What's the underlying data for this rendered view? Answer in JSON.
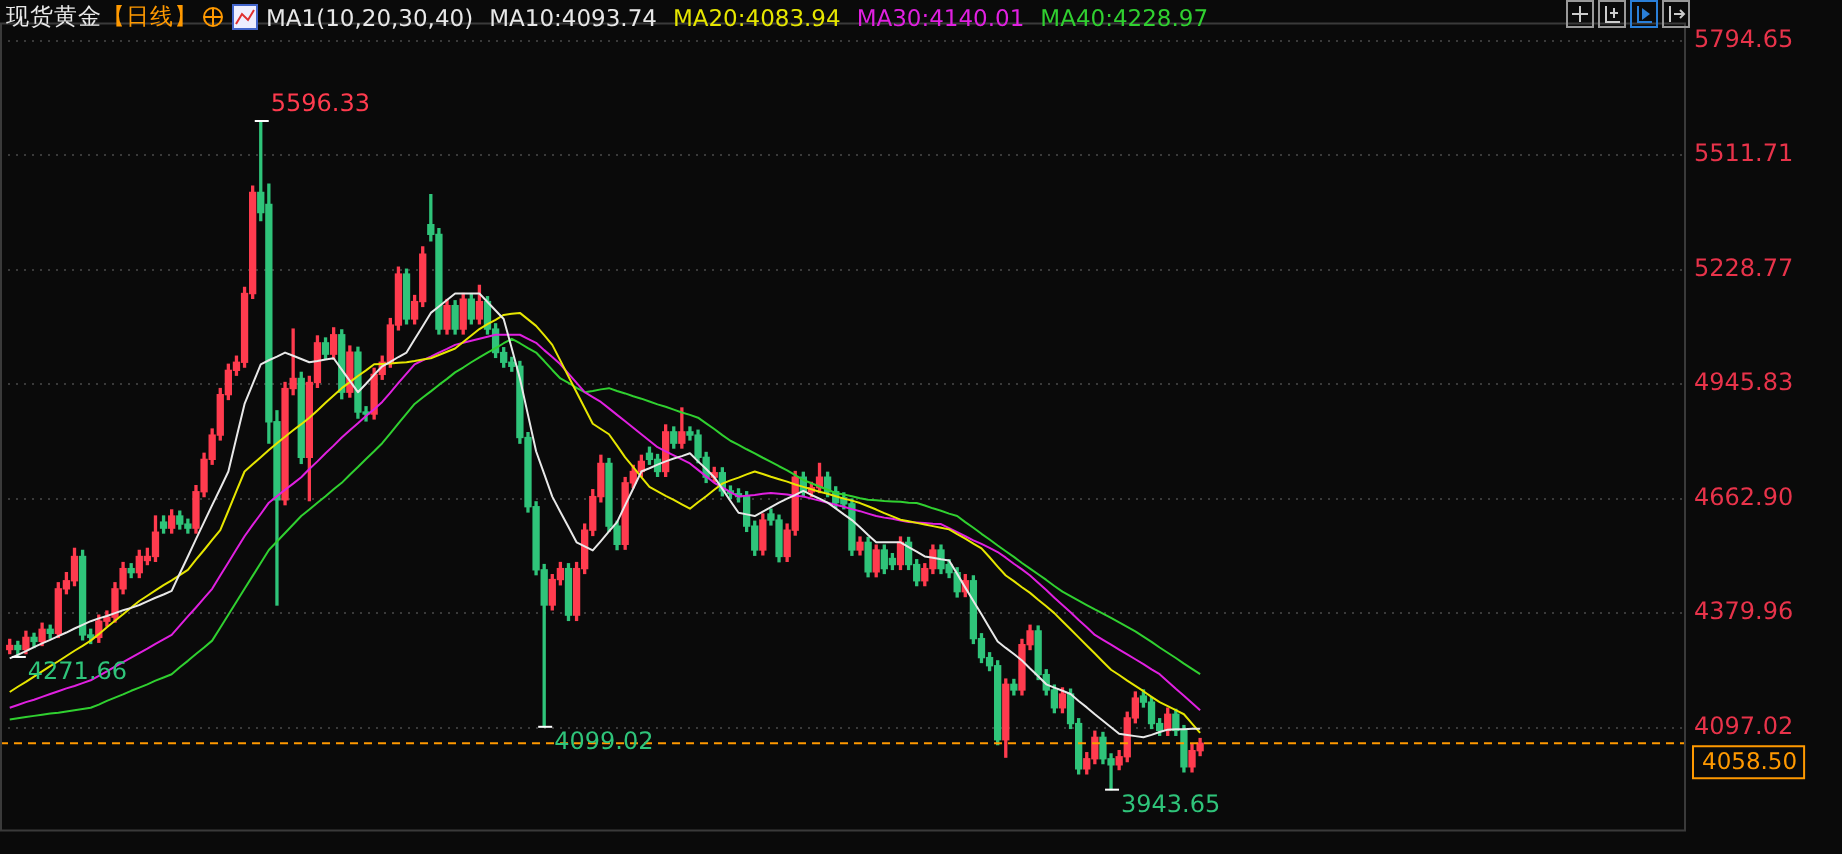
{
  "chart_data": {
    "type": "candlestick",
    "title": "现货黄金",
    "subtitle": "【日线】",
    "annotations": [
      "MA1(10,20,30,40)",
      "5596.33",
      "4271.66",
      "4099.02",
      "3943.65"
    ],
    "colors": [
      "#ff3b4e",
      "#2fc47a",
      "#ff3b4e",
      "#2fc47a",
      "#ff3b4e",
      "#2fc47a",
      "#ff3b4e",
      "#ff3b4e",
      "#ff3b4e",
      "#2fc47a",
      "#2fc47a",
      "#ff3b4e",
      "#ff3b4e",
      "#ff3b4e",
      "#ff3b4e",
      "#2fc47a",
      "#ff3b4e",
      "#ff3b4e",
      "#ff3b4e",
      "#2fc47a",
      "#ff3b4e",
      "#2fc47a",
      "#2fc47a",
      "#ff3b4e",
      "#ff3b4e",
      "#ff3b4e",
      "#ff3b4e",
      "#ff3b4e",
      "#ff3b4e",
      "#ff3b4e",
      "#ff3b4e",
      "#2fc47a",
      "#2fc47a",
      "#2fc47a",
      "#ff3b4e",
      "#ff3b4e",
      "#2fc47a",
      "#ff3b4e",
      "#ff3b4e",
      "#2fc47a",
      "#ff3b4e",
      "#2fc47a",
      "#ff3b4e",
      "#2fc47a",
      "#2fc47a",
      "#ff3b4e",
      "#ff3b4e",
      "#ff3b4e",
      "#ff3b4e",
      "#2fc47a",
      "#ff3b4e",
      "#ff3b4e",
      "#2fc47a",
      "#2fc47a",
      "#ff3b4e",
      "#2fc47a",
      "#ff3b4e",
      "#2fc47a",
      "#ff3b4e",
      "#2fc47a",
      "#2fc47a",
      "#2fc47a",
      "#2fc47a",
      "#2fc47a",
      "#2fc47a",
      "#2fc47a",
      "#2fc47a",
      "#ff3b4e",
      "#ff3b4e",
      "#2fc47a",
      "#ff3b4e",
      "#ff3b4e",
      "#ff3b4e",
      "#ff3b4e",
      "#2fc47a",
      "#2fc47a",
      "#ff3b4e",
      "#ff3b4e",
      "#ff3b4e",
      "#2fc47a",
      "#2fc47a",
      "#ff3b4e",
      "#2fc47a",
      "#ff3b4e",
      "#2fc47a",
      "#2fc47a",
      "#2fc47a",
      "#ff3b4e",
      "#2fc47a",
      "#2fc47a",
      "#2fc47a",
      "#2fc47a",
      "#2fc47a",
      "#ff3b4e",
      "#2fc47a",
      "#2fc47a",
      "#ff3b4e",
      "#ff3b4e",
      "#2fc47a",
      "#ff3b4e",
      "#ff3b4e",
      "#2fc47a",
      "#2fc47a",
      "#2fc47a",
      "#2fc47a",
      "#ff3b4e",
      "#2fc47a",
      "#ff3b4e",
      "#2fc47a",
      "#2fc47a",
      "#ff3b4e",
      "#2fc47a",
      "#2fc47a",
      "#ff3b4e",
      "#ff3b4e",
      "#2fc47a",
      "#2fc47a",
      "#2fc47a",
      "#ff3b4e",
      "#2fc47a",
      "#2fc47a",
      "#2fc47a",
      "#2fc47a",
      "#ff3b4e",
      "#2fc47a",
      "#ff3b4e",
      "#ff3b4e",
      "#2fc47a",
      "#2fc47a",
      "#2fc47a",
      "#ff3b4e",
      "#2fc47a",
      "#2fc47a",
      "#ff3b4e",
      "#ff3b4e",
      "#2fc47a",
      "#2fc47a",
      "#ff3b4e",
      "#ff3b4e",
      "#ff3b4e",
      "#2fc47a",
      "#2fc47a",
      "#2fc47a",
      "#ff3b4e",
      "#2fc47a",
      "#2fc47a",
      "#ff3b4e",
      "#ff3b4e"
    ],
    "categories": [
      null,
      null,
      null,
      null,
      null,
      null,
      null,
      null,
      null,
      null,
      null,
      null,
      null,
      null,
      null,
      null,
      null,
      null,
      null,
      null,
      null,
      null,
      null,
      null,
      null,
      null,
      null,
      null,
      null,
      null,
      null,
      null,
      null,
      null,
      null,
      null,
      null,
      null,
      null,
      null,
      null,
      null,
      null,
      null,
      null,
      null,
      null,
      null,
      null,
      null,
      null,
      null,
      null,
      null,
      null,
      null,
      null,
      null,
      null,
      null,
      null,
      null,
      null,
      null,
      null,
      null,
      null,
      null,
      null,
      null,
      null,
      null,
      null,
      null,
      null,
      null,
      null,
      null,
      null,
      null,
      null,
      null,
      null,
      null,
      null,
      null,
      null,
      null,
      null,
      null,
      null,
      null,
      null,
      null,
      null,
      null,
      null,
      null,
      null,
      null,
      null,
      null,
      null,
      null,
      null,
      null,
      null,
      null,
      null,
      null,
      null,
      null,
      null,
      null,
      null,
      null,
      null,
      null,
      null,
      null,
      null,
      null,
      null,
      null,
      null,
      null,
      null,
      null,
      null,
      null,
      null,
      null,
      null,
      null,
      null,
      null,
      null,
      null,
      null,
      null,
      null,
      null,
      null,
      null,
      null,
      null,
      null,
      null
    ],
    "ohlc": [
      [
        4290,
        4315,
        4280,
        4300
      ],
      [
        4300,
        4310,
        4271.66,
        4290
      ],
      [
        4290,
        4335,
        4280,
        4320
      ],
      [
        4320,
        4330,
        4295,
        4310
      ],
      [
        4310,
        4355,
        4300,
        4340
      ],
      [
        4340,
        4350,
        4318,
        4330
      ],
      [
        4330,
        4455,
        4320,
        4440
      ],
      [
        4440,
        4480,
        4428,
        4460
      ],
      [
        4460,
        4540,
        4448,
        4520
      ],
      [
        4520,
        4535,
        4314,
        4326
      ],
      [
        4326,
        4340,
        4305,
        4320
      ],
      [
        4320,
        4375,
        4308,
        4360
      ],
      [
        4360,
        4385,
        4348,
        4370
      ],
      [
        4370,
        4455,
        4358,
        4440
      ],
      [
        4440,
        4505,
        4428,
        4490
      ],
      [
        4490,
        4502,
        4468,
        4480
      ],
      [
        4480,
        4535,
        4468,
        4520
      ],
      [
        4510,
        4540,
        4500,
        4520
      ],
      [
        4520,
        4620,
        4508,
        4580
      ],
      [
        4605,
        4620,
        4578,
        4590
      ],
      [
        4590,
        4635,
        4578,
        4620
      ],
      [
        4620,
        4632,
        4588,
        4600
      ],
      [
        4600,
        4612,
        4578,
        4590
      ],
      [
        4590,
        4695,
        4578,
        4680
      ],
      [
        4680,
        4775,
        4668,
        4760
      ],
      [
        4760,
        4835,
        4748,
        4820
      ],
      [
        4820,
        4935,
        4808,
        4920
      ],
      [
        4920,
        4995,
        4908,
        4980
      ],
      [
        4980,
        5015,
        4968,
        5000
      ],
      [
        5000,
        5185,
        4988,
        5170
      ],
      [
        5170,
        5435,
        5158,
        5420
      ],
      [
        5420,
        5596.33,
        5350,
        5370
      ],
      [
        5390,
        5440,
        4800,
        4853
      ],
      [
        4853,
        4880,
        4400,
        4660
      ],
      [
        4660,
        4950,
        4648,
        4935
      ],
      [
        4935,
        5082,
        4920,
        4960
      ],
      [
        4960,
        4975,
        4750,
        4765
      ],
      [
        4765,
        4965,
        4658,
        4950
      ],
      [
        4950,
        5065,
        4938,
        5048
      ],
      [
        5048,
        5060,
        5008,
        5020
      ],
      [
        5020,
        5085,
        5008,
        5068
      ],
      [
        5068,
        5080,
        4910,
        4926
      ],
      [
        4926,
        5040,
        4914,
        5025
      ],
      [
        5025,
        5037,
        4862,
        4877
      ],
      [
        4877,
        4890,
        4855,
        4872
      ],
      [
        4872,
        4985,
        4860,
        4970
      ],
      [
        4970,
        5015,
        4958,
        5000
      ],
      [
        5000,
        5108,
        4988,
        5092
      ],
      [
        5092,
        5235,
        5080,
        5218
      ],
      [
        5218,
        5230,
        5095,
        5107
      ],
      [
        5107,
        5165,
        5095,
        5150
      ],
      [
        5150,
        5285,
        5138,
        5267
      ],
      [
        5340,
        5414,
        5300,
        5316
      ],
      [
        5316,
        5330,
        5070,
        5082
      ],
      [
        5082,
        5155,
        5070,
        5140
      ],
      [
        5140,
        5152,
        5070,
        5082
      ],
      [
        5082,
        5170,
        5070,
        5156
      ],
      [
        5156,
        5168,
        5095,
        5107
      ],
      [
        5107,
        5190,
        5095,
        5150
      ],
      [
        5150,
        5162,
        5070,
        5082
      ],
      [
        5082,
        5095,
        5012,
        5024
      ],
      [
        5024,
        5036,
        4988,
        5000
      ],
      [
        5000,
        5012,
        4978,
        4990
      ],
      [
        4990,
        5002,
        4800,
        4814
      ],
      [
        4814,
        4826,
        4630,
        4643
      ],
      [
        4643,
        4655,
        4475,
        4487
      ],
      [
        4487,
        4500,
        4099.02,
        4400
      ],
      [
        4400,
        4475,
        4388,
        4463
      ],
      [
        4463,
        4505,
        4450,
        4490
      ],
      [
        4490,
        4502,
        4362,
        4375
      ],
      [
        4375,
        4505,
        4362,
        4490
      ],
      [
        4490,
        4600,
        4478,
        4585
      ],
      [
        4585,
        4685,
        4572,
        4668
      ],
      [
        4668,
        4770,
        4655,
        4750
      ],
      [
        4750,
        4762,
        4582,
        4595
      ],
      [
        4595,
        4607,
        4537,
        4550
      ],
      [
        4550,
        4715,
        4538,
        4702
      ],
      [
        4702,
        4745,
        4690,
        4730
      ],
      [
        4730,
        4770,
        4718,
        4755
      ],
      [
        4775,
        4790,
        4748,
        4760
      ],
      [
        4760,
        4772,
        4718,
        4730
      ],
      [
        4730,
        4845,
        4718,
        4828
      ],
      [
        4828,
        4840,
        4788,
        4800
      ],
      [
        4800,
        4887,
        4788,
        4828
      ],
      [
        4828,
        4840,
        4808,
        4820
      ],
      [
        4820,
        4832,
        4752,
        4765
      ],
      [
        4765,
        4777,
        4703,
        4716
      ],
      [
        4716,
        4740,
        4704,
        4727
      ],
      [
        4727,
        4739,
        4670,
        4682
      ],
      [
        4682,
        4694,
        4663,
        4675
      ],
      [
        4675,
        4687,
        4655,
        4668
      ],
      [
        4668,
        4680,
        4582,
        4595
      ],
      [
        4595,
        4607,
        4523,
        4536
      ],
      [
        4536,
        4625,
        4524,
        4610
      ],
      [
        4625,
        4637,
        4598,
        4610
      ],
      [
        4610,
        4622,
        4507,
        4520
      ],
      [
        4520,
        4600,
        4508,
        4585
      ],
      [
        4585,
        4730,
        4573,
        4716
      ],
      [
        4716,
        4728,
        4668,
        4680
      ],
      [
        4680,
        4703,
        4668,
        4690
      ],
      [
        4690,
        4750,
        4678,
        4716
      ],
      [
        4716,
        4728,
        4668,
        4680
      ],
      [
        4680,
        4692,
        4640,
        4653
      ],
      [
        4665,
        4677,
        4638,
        4650
      ],
      [
        4650,
        4662,
        4523,
        4536
      ],
      [
        4536,
        4568,
        4524,
        4555
      ],
      [
        4555,
        4567,
        4470,
        4482
      ],
      [
        4482,
        4548,
        4470,
        4536
      ],
      [
        4536,
        4548,
        4478,
        4490
      ],
      [
        4515,
        4527,
        4488,
        4500
      ],
      [
        4500,
        4568,
        4488,
        4555
      ],
      [
        4555,
        4567,
        4488,
        4500
      ],
      [
        4500,
        4512,
        4448,
        4460
      ],
      [
        4460,
        4502,
        4448,
        4490
      ],
      [
        4490,
        4548,
        4478,
        4536
      ],
      [
        4536,
        4548,
        4478,
        4490
      ],
      [
        4500,
        4512,
        4468,
        4480
      ],
      [
        4480,
        4492,
        4420,
        4433
      ],
      [
        4433,
        4475,
        4421,
        4460
      ],
      [
        4460,
        4472,
        4305,
        4317
      ],
      [
        4317,
        4329,
        4258,
        4270
      ],
      [
        4270,
        4282,
        4238,
        4250
      ],
      [
        4250,
        4262,
        4055,
        4067
      ],
      [
        4067,
        4217,
        4024,
        4204
      ],
      [
        4204,
        4216,
        4178,
        4190
      ],
      [
        4190,
        4315,
        4178,
        4302
      ],
      [
        4302,
        4350,
        4290,
        4336
      ],
      [
        4336,
        4348,
        4216,
        4228
      ],
      [
        4228,
        4240,
        4178,
        4190
      ],
      [
        4190,
        4202,
        4134,
        4146
      ],
      [
        4146,
        4195,
        4134,
        4180
      ],
      [
        4180,
        4192,
        4095,
        4107
      ],
      [
        4107,
        4119,
        3983,
        3995
      ],
      [
        3995,
        4035,
        3983,
        4020
      ],
      [
        4020,
        4088,
        4008,
        4073
      ],
      [
        4073,
        4085,
        4008,
        4020
      ],
      [
        4020,
        4032,
        3943.65,
        4005
      ],
      [
        4005,
        4040,
        3993,
        4025
      ],
      [
        4025,
        4135,
        4013,
        4121
      ],
      [
        4121,
        4185,
        4109,
        4170
      ],
      [
        4175,
        4190,
        4148,
        4160
      ],
      [
        4160,
        4172,
        4095,
        4107
      ],
      [
        4107,
        4119,
        4078,
        4090
      ],
      [
        4090,
        4145,
        4078,
        4130
      ],
      [
        4130,
        4142,
        4078,
        4090
      ],
      [
        4090,
        4102,
        3988,
        4000
      ],
      [
        4000,
        4055,
        3988,
        4040
      ],
      [
        4040,
        4070,
        4028,
        4058.5
      ]
    ],
    "series": [
      {
        "type": "line",
        "name": "MA10:4093.74",
        "color": "#e8e8e8",
        "values": [
          4268,
          4277,
          4286,
          4296,
          4305,
          4314,
          4323,
          4332,
          4342,
          4351,
          4360,
          4367,
          4373,
          4380,
          4387,
          4393,
          4400,
          4409,
          4418,
          4426,
          4435,
          4478,
          4520,
          4563,
          4605,
          4647,
          4688,
          4730,
          4814,
          4897,
          4946,
          4995,
          5005,
          5014,
          5024,
          5016,
          5008,
          5000,
          5003,
          5007,
          5010,
          4982,
          4954,
          4926,
          4947,
          4969,
          4990,
          5001,
          5013,
          5024,
          5057,
          5089,
          5122,
          5138,
          5154,
          5170,
          5170,
          5170,
          5170,
          5149,
          5128,
          5107,
          5034,
          4960,
          4870,
          4780,
          4724,
          4668,
          4630,
          4593,
          4555,
          4545,
          4535,
          4558,
          4582,
          4605,
          4647,
          4688,
          4730,
          4738,
          4747,
          4755,
          4762,
          4768,
          4775,
          4755,
          4736,
          4716,
          4687,
          4657,
          4628,
          4624,
          4620,
          4631,
          4642,
          4653,
          4663,
          4672,
          4682,
          4672,
          4663,
          4653,
          4639,
          4624,
          4610,
          4592,
          4573,
          4555,
          4555,
          4555,
          4555,
          4543,
          4532,
          4520,
          4517,
          4513,
          4510,
          4477,
          4443,
          4410,
          4377,
          4343,
          4310,
          4294,
          4279,
          4263,
          4243,
          4224,
          4204,
          4196,
          4188,
          4180,
          4163,
          4147,
          4130,
          4114,
          4098,
          4082,
          4079,
          4076,
          4073,
          4079,
          4086,
          4092,
          4093,
          4093,
          4094,
          4094
        ]
      },
      {
        "type": "line",
        "name": "MA20:4083.94",
        "color": "#e6e600",
        "values": [
          4185,
          4198,
          4210,
          4223,
          4236,
          4249,
          4261,
          4274,
          4287,
          4299,
          4312,
          4328,
          4345,
          4361,
          4377,
          4394,
          4410,
          4423,
          4436,
          4449,
          4461,
          4474,
          4487,
          4512,
          4536,
          4561,
          4585,
          4633,
          4682,
          4730,
          4748,
          4765,
          4783,
          4800,
          4816,
          4832,
          4847,
          4863,
          4881,
          4900,
          4918,
          4936,
          4951,
          4966,
          4980,
          4995,
          4996,
          4997,
          4999,
          5000,
          5003,
          5007,
          5010,
          5018,
          5026,
          5034,
          5050,
          5066,
          5082,
          5094,
          5105,
          5117,
          5120,
          5122,
          5106,
          5090,
          5067,
          5043,
          5004,
          4965,
          4926,
          4887,
          4848,
          4835,
          4822,
          4794,
          4765,
          4741,
          4716,
          4692,
          4681,
          4670,
          4660,
          4649,
          4638,
          4654,
          4669,
          4685,
          4700,
          4708,
          4715,
          4723,
          4730,
          4724,
          4717,
          4711,
          4705,
          4698,
          4692,
          4686,
          4680,
          4675,
          4669,
          4663,
          4658,
          4652,
          4644,
          4636,
          4627,
          4619,
          4611,
          4607,
          4603,
          4599,
          4595,
          4591,
          4587,
          4575,
          4564,
          4552,
          4540,
          4518,
          4495,
          4473,
          4459,
          4444,
          4430,
          4413,
          4397,
          4380,
          4360,
          4340,
          4320,
          4300,
          4280,
          4260,
          4240,
          4227,
          4213,
          4200,
          4187,
          4173,
          4160,
          4150,
          4140,
          4130,
          4107,
          4084
        ]
      },
      {
        "type": "line",
        "name": "MA30:4140.01",
        "color": "#e020e0",
        "values": [
          4146,
          4153,
          4160,
          4166,
          4173,
          4180,
          4187,
          4194,
          4200,
          4207,
          4214,
          4225,
          4236,
          4248,
          4259,
          4270,
          4281,
          4292,
          4304,
          4315,
          4326,
          4349,
          4372,
          4394,
          4417,
          4440,
          4473,
          4505,
          4538,
          4570,
          4598,
          4625,
          4653,
          4669,
          4685,
          4700,
          4716,
          4736,
          4755,
          4775,
          4794,
          4814,
          4832,
          4849,
          4867,
          4884,
          4902,
          4925,
          4949,
          4972,
          4995,
          5005,
          5014,
          5024,
          5033,
          5043,
          5048,
          5053,
          5058,
          5063,
          5068,
          5068,
          5068,
          5068,
          5058,
          5048,
          5030,
          5013,
          4995,
          4972,
          4949,
          4926,
          4914,
          4902,
          4886,
          4870,
          4854,
          4838,
          4822,
          4806,
          4790,
          4780,
          4770,
          4760,
          4750,
          4734,
          4718,
          4702,
          4691,
          4679,
          4668,
          4670,
          4672,
          4675,
          4677,
          4675,
          4673,
          4670,
          4668,
          4663,
          4658,
          4653,
          4648,
          4643,
          4637,
          4632,
          4626,
          4620,
          4616,
          4613,
          4609,
          4605,
          4604,
          4603,
          4601,
          4600,
          4590,
          4580,
          4570,
          4560,
          4551,
          4541,
          4531,
          4517,
          4502,
          4488,
          4473,
          4455,
          4437,
          4418,
          4400,
          4382,
          4363,
          4345,
          4326,
          4314,
          4302,
          4290,
          4278,
          4266,
          4254,
          4241,
          4229,
          4211,
          4193,
          4176,
          4158,
          4140
        ]
      },
      {
        "type": "line",
        "name": "MA40:4228.97",
        "color": "#30d030",
        "values": [
          4117,
          4120,
          4123,
          4126,
          4129,
          4132,
          4134,
          4137,
          4140,
          4143,
          4146,
          4154,
          4163,
          4171,
          4179,
          4188,
          4196,
          4204,
          4213,
          4221,
          4229,
          4246,
          4262,
          4279,
          4295,
          4312,
          4344,
          4376,
          4408,
          4440,
          4472,
          4504,
          4536,
          4557,
          4578,
          4599,
          4620,
          4636,
          4653,
          4669,
          4686,
          4702,
          4722,
          4741,
          4761,
          4780,
          4800,
          4824,
          4849,
          4873,
          4897,
          4913,
          4928,
          4944,
          4959,
          4975,
          4987,
          5000,
          5012,
          5024,
          5035,
          5047,
          5058,
          5047,
          5035,
          5024,
          5003,
          4981,
          4960,
          4949,
          4937,
          4926,
          4929,
          4933,
          4936,
          4929,
          4923,
          4916,
          4910,
          4903,
          4896,
          4890,
          4883,
          4876,
          4870,
          4863,
          4849,
          4835,
          4820,
          4806,
          4796,
          4785,
          4775,
          4764,
          4754,
          4743,
          4733,
          4721,
          4709,
          4701,
          4693,
          4685,
          4677,
          4673,
          4669,
          4664,
          4660,
          4659,
          4657,
          4656,
          4655,
          4653,
          4652,
          4646,
          4639,
          4633,
          4626,
          4620,
          4605,
          4591,
          4576,
          4562,
          4547,
          4533,
          4519,
          4504,
          4490,
          4476,
          4462,
          4447,
          4433,
          4422,
          4411,
          4400,
          4389,
          4379,
          4368,
          4357,
          4346,
          4335,
          4322,
          4309,
          4295,
          4282,
          4269,
          4255,
          4242,
          4229
        ]
      }
    ],
    "ylim": [
      3840,
      5840
    ],
    "yticks": [
      {
        "value": 4097.02,
        "label": "4097.02"
      },
      {
        "value": 4379.96,
        "label": "4379.96"
      },
      {
        "value": 4662.9,
        "label": "4662.90"
      },
      {
        "value": 4945.83,
        "label": "4945.83"
      },
      {
        "value": 5228.77,
        "label": "5228.77"
      },
      {
        "value": 5511.71,
        "label": "5511.71"
      },
      {
        "value": 5794.65,
        "label": "5794.65"
      }
    ],
    "ref_lines": [
      {
        "axis": "y",
        "value": 4058.5,
        "label": "4058.50",
        "color": "#ff9900",
        "line_style": "dashed"
      }
    ],
    "grid": "y",
    "tick_labels": "y"
  }
}
